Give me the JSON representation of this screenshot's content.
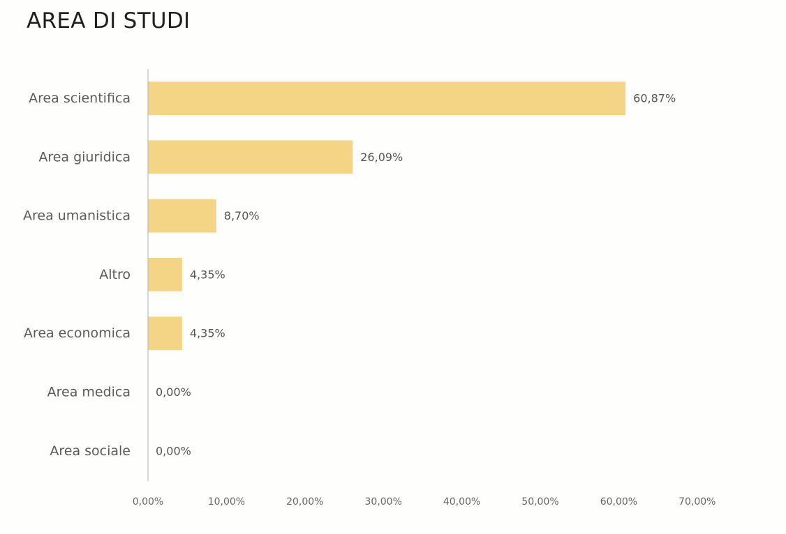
{
  "chart_data": {
    "type": "bar",
    "orientation": "horizontal",
    "title": "AREA DI STUDI",
    "categories": [
      "Area scientifica",
      "Area giuridica",
      "Area umanistica",
      "Altro",
      "Area economica",
      "Area medica",
      "Area sociale"
    ],
    "values": [
      60.87,
      26.09,
      8.7,
      4.35,
      4.35,
      0.0,
      0.0
    ],
    "value_labels": [
      "60,87%",
      "26,09%",
      "8,70%",
      "4,35%",
      "4,35%",
      "0,00%",
      "0,00%"
    ],
    "xlim": [
      0,
      70
    ],
    "xticks": [
      0,
      10,
      20,
      30,
      40,
      50,
      60,
      70
    ],
    "xtick_labels": [
      "0,00%",
      "10,00%",
      "20,00%",
      "30,00%",
      "40,00%",
      "50,00%",
      "60,00%",
      "70,00%"
    ],
    "grid": false,
    "legend": "none",
    "bar_color": "#f4d585",
    "axis_color": "#bdbdbd"
  }
}
